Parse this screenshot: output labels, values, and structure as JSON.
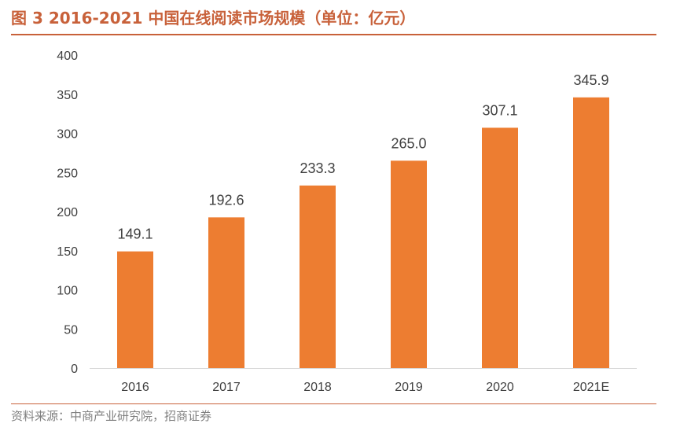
{
  "header": {
    "title": "图 3 2016-2021 中国在线阅读市场规模（单位：亿元）"
  },
  "footer": {
    "source": "资料来源：中商产业研究院，招商证券"
  },
  "colors": {
    "bar": "#ed7d31",
    "accent": "#c8613a",
    "axis": "#d9d9d9",
    "text": "#404040"
  },
  "chart_data": {
    "type": "bar",
    "title": "图 3 2016-2021 中国在线阅读市场规模（单位：亿元）",
    "categories": [
      "2016",
      "2017",
      "2018",
      "2019",
      "2020",
      "2021E"
    ],
    "values": [
      149.1,
      192.6,
      233.3,
      265.0,
      307.1,
      345.9
    ],
    "value_labels": [
      "149.1",
      "192.6",
      "233.3",
      "265.0",
      "307.1",
      "345.9"
    ],
    "ylim": [
      0,
      400
    ],
    "yticks": [
      "0",
      "50",
      "100",
      "150",
      "200",
      "250",
      "300",
      "350",
      "400"
    ],
    "grid": false,
    "legend": "none"
  }
}
